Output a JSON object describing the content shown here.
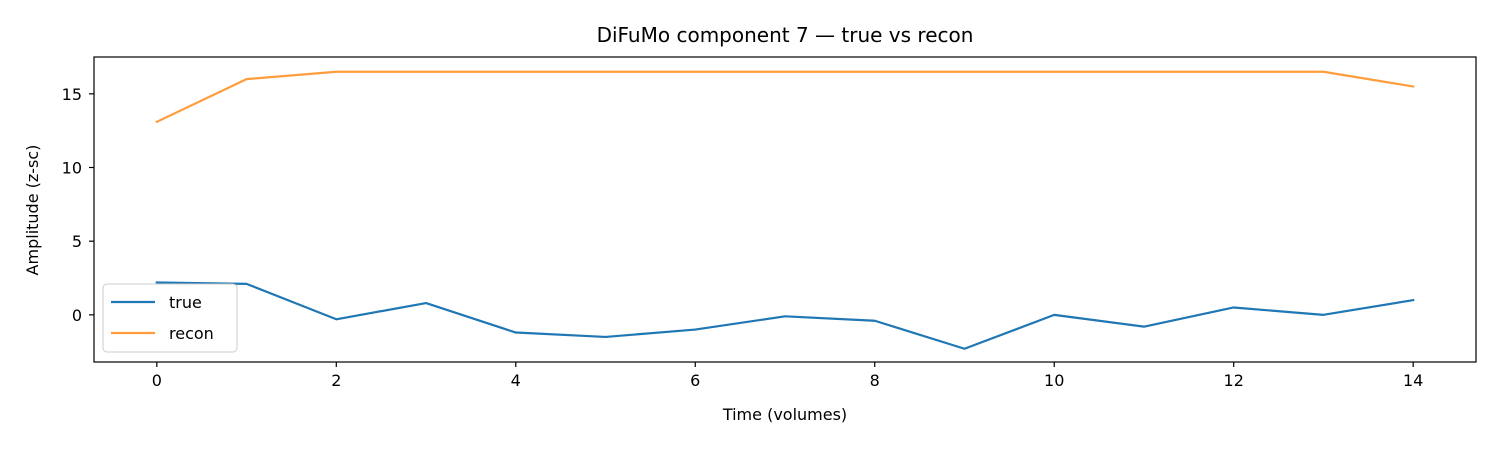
{
  "chart_data": {
    "type": "line",
    "title": "DiFuMo component 7 — true vs recon",
    "xlabel": "Time (volumes)",
    "ylabel": "Amplitude (z-sc)",
    "xlim": [
      -0.7,
      14.7
    ],
    "ylim": [
      -3.2,
      17.5
    ],
    "xticks": [
      0,
      2,
      4,
      6,
      8,
      10,
      12,
      14
    ],
    "yticks": [
      0,
      5,
      10,
      15
    ],
    "grid": false,
    "legend_position": "lower-left",
    "x": [
      0,
      1,
      2,
      3,
      4,
      5,
      6,
      7,
      8,
      9,
      10,
      11,
      12,
      13,
      14
    ],
    "series": [
      {
        "name": "true",
        "color": "#1f77b4",
        "values": [
          2.2,
          2.1,
          -0.3,
          0.8,
          -1.2,
          -1.5,
          -1.0,
          -0.1,
          -0.4,
          -2.3,
          0.0,
          -0.8,
          0.5,
          0.0,
          1.0
        ]
      },
      {
        "name": "recon",
        "color": "#ff9c3c",
        "values": [
          13.1,
          16.0,
          16.5,
          16.5,
          16.5,
          16.5,
          16.5,
          16.5,
          16.5,
          16.5,
          16.5,
          16.5,
          16.5,
          16.5,
          15.5
        ]
      }
    ]
  }
}
